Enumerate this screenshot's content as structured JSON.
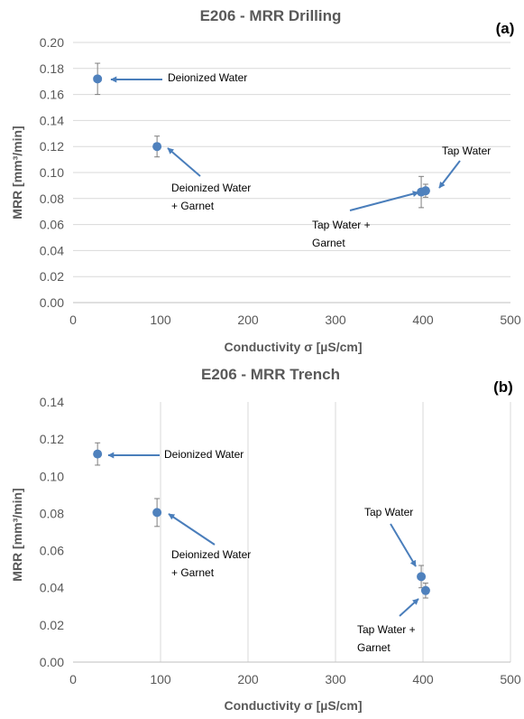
{
  "colors": {
    "marker": "#4F81BD",
    "arrow": "#4A7EBB",
    "error_bar": "#7f7f7f",
    "gridline": "#d9d9d9",
    "text": "#595959"
  },
  "chart_data": [
    {
      "type": "scatter",
      "title": "E206 - MRR Drilling",
      "panel_label": "(a)",
      "xlabel": "Conductivity σ [µS/cm]",
      "ylabel": "MRR  [mm³/min]",
      "xlim": [
        0,
        500
      ],
      "ylim": [
        0,
        0.2
      ],
      "x_ticks": [
        0,
        100,
        200,
        300,
        400,
        500
      ],
      "y_ticks": [
        0,
        0.02,
        0.04,
        0.06,
        0.08,
        0.1,
        0.12,
        0.14,
        0.16,
        0.18,
        0.2
      ],
      "y_tick_labels": [
        "0.00",
        "0.02",
        "0.04",
        "0.06",
        "0.08",
        "0.10",
        "0.12",
        "0.14",
        "0.16",
        "0.18",
        "0.20"
      ],
      "grid": "horizontal",
      "points": [
        {
          "x": 28,
          "y": 0.172,
          "err": 0.012
        },
        {
          "x": 96,
          "y": 0.12,
          "err": 0.008
        },
        {
          "x": 398,
          "y": 0.085,
          "err": 0.012
        },
        {
          "x": 403,
          "y": 0.086,
          "err": 0.005
        }
      ],
      "annotations": [
        {
          "lines": [
            "Deionized  Water"
          ]
        },
        {
          "lines": [
            "Deionized  Water",
            "+ Garnet"
          ]
        },
        {
          "lines": [
            "Tap Water +",
            "Garnet"
          ]
        },
        {
          "lines": [
            "Tap Water"
          ]
        }
      ]
    },
    {
      "type": "scatter",
      "title": "E206 - MRR Trench",
      "panel_label": "(b)",
      "xlabel": "Conductivity σ [µS/cm]",
      "ylabel": "MRR  [mm³/min]",
      "xlim": [
        0,
        500
      ],
      "ylim": [
        0,
        0.14
      ],
      "x_ticks": [
        0,
        100,
        200,
        300,
        400,
        500
      ],
      "y_ticks": [
        0,
        0.02,
        0.04,
        0.06,
        0.08,
        0.1,
        0.12,
        0.14
      ],
      "y_tick_labels": [
        "0.00",
        "0.02",
        "0.04",
        "0.06",
        "0.08",
        "0.10",
        "0.12",
        "0.14"
      ],
      "grid": "vertical",
      "points": [
        {
          "x": 28,
          "y": 0.112,
          "err": 0.006
        },
        {
          "x": 96,
          "y": 0.0805,
          "err": 0.0075
        },
        {
          "x": 398,
          "y": 0.046,
          "err": 0.006
        },
        {
          "x": 403,
          "y": 0.0385,
          "err": 0.004
        }
      ],
      "annotations": [
        {
          "lines": [
            "Deionized  Water"
          ]
        },
        {
          "lines": [
            "Deionized  Water",
            "+ Garnet"
          ]
        },
        {
          "lines": [
            "Tap Water"
          ]
        },
        {
          "lines": [
            "Tap Water +",
            "Garnet"
          ]
        }
      ]
    }
  ]
}
